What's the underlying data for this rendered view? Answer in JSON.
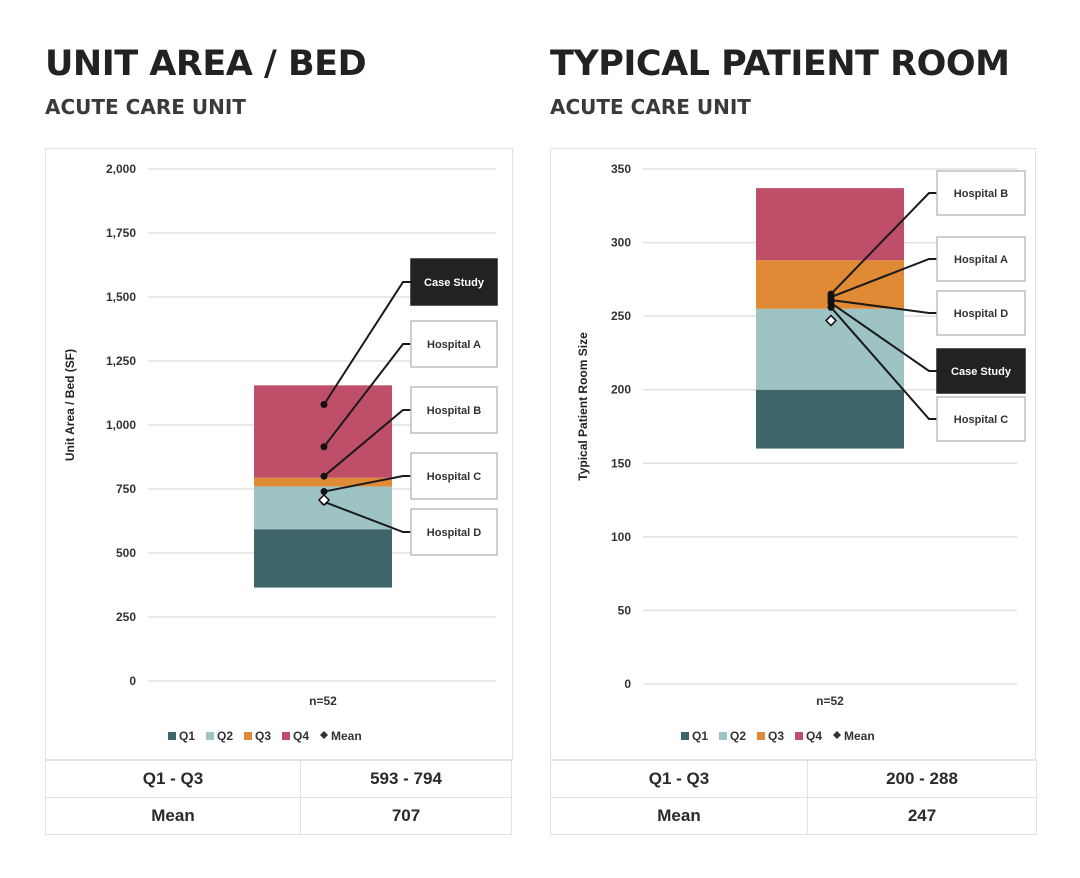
{
  "colors": {
    "q1": "#3e6668",
    "q2": "#9ec3c4",
    "q3": "#e08a36",
    "q4": "#bf4f68",
    "mean": "#ffffff",
    "grid": "#e0e0e0",
    "highlight": "#222222"
  },
  "legend": [
    "Q1",
    "Q2",
    "Q3",
    "Q4",
    "Mean"
  ],
  "chart_data": [
    {
      "type": "bar",
      "title": "UNIT AREA / BED",
      "subtitle": "ACUTE CARE UNIT",
      "ylabel": "Unit Area / Bed (SF)",
      "xlabel": "n=52",
      "ylim": [
        0,
        2000
      ],
      "ticks": [
        0,
        250,
        500,
        750,
        1000,
        1250,
        1500,
        1750,
        2000
      ],
      "tick_labels": [
        "0",
        "250",
        "500",
        "750",
        "1,000",
        "1,250",
        "1,500",
        "1,750",
        "2,000"
      ],
      "quartiles": {
        "min": 365,
        "q1": 593,
        "median": 760,
        "q3": 794,
        "max": 1155
      },
      "mean": 707,
      "grid": true,
      "legend_position": "bottom",
      "callouts": [
        {
          "label": "Case Study",
          "value": 1080,
          "highlight": true
        },
        {
          "label": "Hospital A",
          "value": 915,
          "highlight": false
        },
        {
          "label": "Hospital B",
          "value": 800,
          "highlight": false
        },
        {
          "label": "Hospital C",
          "value": 740,
          "highlight": false
        },
        {
          "label": "Hospital D",
          "value": 700,
          "highlight": false
        }
      ],
      "stats": [
        {
          "label": "Q1 - Q3",
          "value": "593 - 794"
        },
        {
          "label": "Mean",
          "value": "707"
        }
      ]
    },
    {
      "type": "bar",
      "title": "TYPICAL PATIENT ROOM",
      "subtitle": "ACUTE CARE UNIT",
      "ylabel": "Typical Patient Room Size",
      "xlabel": "n=52",
      "ylim": [
        0,
        350
      ],
      "ticks": [
        0,
        50,
        100,
        150,
        200,
        250,
        300,
        350
      ],
      "tick_labels": [
        "0",
        "50",
        "100",
        "150",
        "200",
        "250",
        "300",
        "350"
      ],
      "quartiles": {
        "min": 160,
        "q1": 200,
        "median": 255,
        "q3": 288,
        "max": 337
      },
      "mean": 247,
      "grid": true,
      "legend_position": "bottom",
      "callouts": [
        {
          "label": "Hospital B",
          "value": 265,
          "highlight": false
        },
        {
          "label": "Hospital A",
          "value": 263,
          "highlight": false
        },
        {
          "label": "Hospital D",
          "value": 261,
          "highlight": false
        },
        {
          "label": "Case Study",
          "value": 259,
          "highlight": true
        },
        {
          "label": "Hospital C",
          "value": 256,
          "highlight": false
        }
      ],
      "stats": [
        {
          "label": "Q1 - Q3",
          "value": "200 - 288"
        },
        {
          "label": "Mean",
          "value": "247"
        }
      ]
    }
  ]
}
